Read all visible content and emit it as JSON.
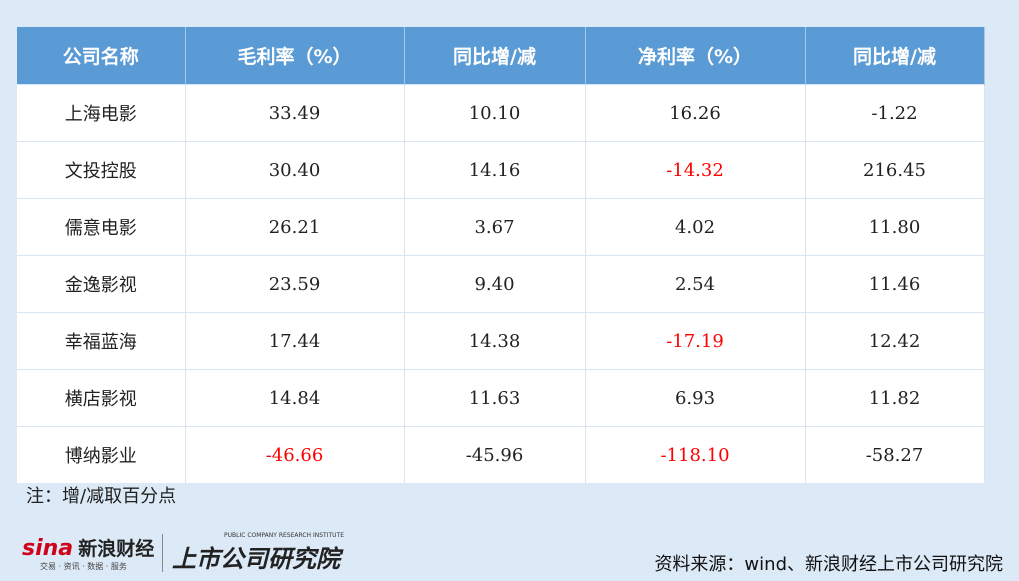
{
  "table": {
    "header": [
      "公司名称",
      "毛利率（%）",
      "同比增/减",
      "净利率（%）",
      "同比增/减"
    ],
    "rows": [
      [
        "上海电影",
        "33.49",
        "10.10",
        "16.26",
        "-1.22"
      ],
      [
        "文投控股",
        "30.40",
        "14.16",
        "-14.32",
        "216.45"
      ],
      [
        "儒意电影",
        "26.21",
        "3.67",
        "4.02",
        "11.80"
      ],
      [
        "金逸影视",
        "23.59",
        "9.40",
        "2.54",
        "11.46"
      ],
      [
        "幸福蓝海",
        "17.44",
        "14.38",
        "-17.19",
        "12.42"
      ],
      [
        "横店影视",
        "14.84",
        "11.63",
        "6.93",
        "11.82"
      ],
      [
        "博纳影业",
        "-46.66",
        "-45.96",
        "-118.10",
        "-58.27"
      ]
    ],
    "highlight_color": "#ff0000",
    "highlighted_cells": [
      [
        1,
        3
      ],
      [
        4,
        3
      ],
      [
        6,
        1
      ],
      [
        6,
        3
      ]
    ]
  },
  "note": "注：增/减取百分点",
  "footer": {
    "logo_sina": "sina",
    "logo_sina_cn": "新浪财经",
    "logo_sina_tagline": "交易 · 资讯 · 数据 · 服务",
    "logo_institute": "上市公司研究院",
    "logo_institute_en": "PUBLIC COMPANY RESEARCH INSTITUTE",
    "source": "资料来源：wind、新浪财经上市公司研究院"
  }
}
